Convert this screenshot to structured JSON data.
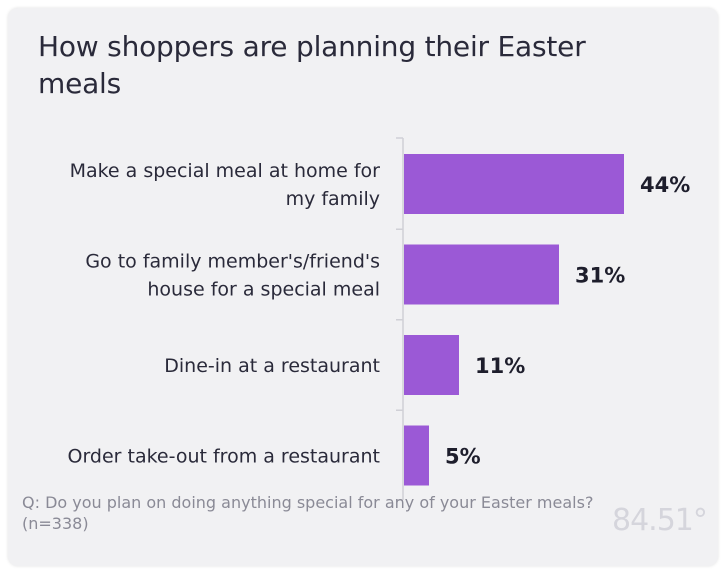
{
  "chart_data": {
    "type": "bar",
    "orientation": "horizontal",
    "title": "How shoppers are planning their Easter meals",
    "categories": [
      [
        "Make a special meal at home for",
        "my family"
      ],
      [
        "Go to family member's/friend's",
        "house for a special meal"
      ],
      [
        "Dine-in at a restaurant"
      ],
      [
        "Order take-out from a restaurant"
      ]
    ],
    "values": [
      44,
      31,
      11,
      5
    ],
    "value_labels": [
      "44%",
      "31%",
      "11%",
      "5%"
    ],
    "unit": "%",
    "xlim": [
      0,
      50
    ],
    "grid": false,
    "bar_color": "#9b59d6"
  },
  "footnote": "Q: Do you plan on doing anything special for any of your Easter meals? (n=338)",
  "logo_text": "84.51°"
}
